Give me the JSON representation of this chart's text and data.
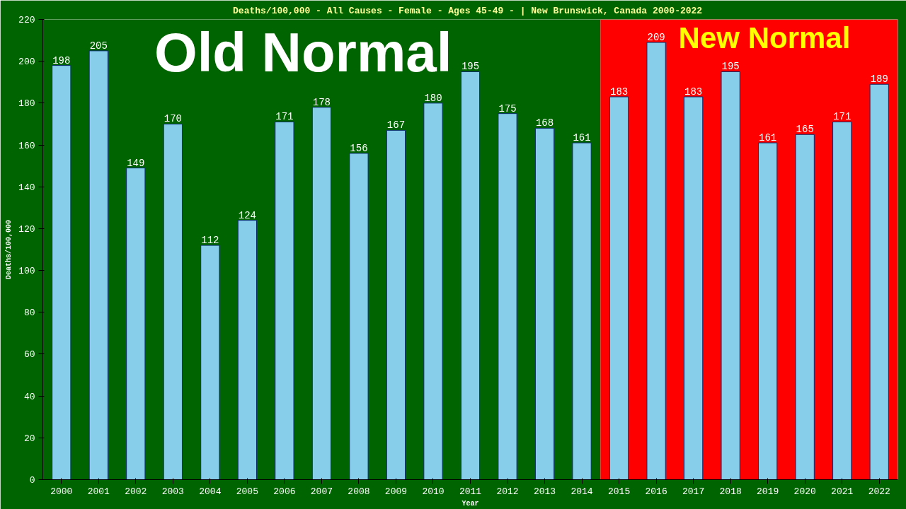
{
  "chart_data": {
    "type": "bar",
    "title": "Deaths/100,000 - All Causes - Female - Ages 45-49 -  | New Brunswick, Canada 2000-2022",
    "xlabel": "Year",
    "ylabel": "Deaths/100,000",
    "categories": [
      "2000",
      "2001",
      "2002",
      "2003",
      "2004",
      "2005",
      "2006",
      "2007",
      "2008",
      "2009",
      "2010",
      "2011",
      "2012",
      "2013",
      "2014",
      "2015",
      "2016",
      "2017",
      "2018",
      "2019",
      "2020",
      "2021",
      "2022"
    ],
    "values": [
      198,
      205,
      149,
      170,
      112,
      124,
      171,
      178,
      156,
      167,
      180,
      195,
      175,
      168,
      161,
      183,
      209,
      183,
      195,
      161,
      165,
      171,
      189
    ],
    "color": "#87ceeb",
    "data_labels": true,
    "ylim": [
      0,
      220
    ],
    "yticks": [
      0,
      20,
      40,
      60,
      80,
      100,
      120,
      140,
      160,
      180,
      200,
      220
    ],
    "grid": false,
    "bands": [
      {
        "axis": "x",
        "from": "2000",
        "to": "2014",
        "label": "Old Normal",
        "color": "#006400"
      },
      {
        "axis": "x",
        "from": "2015",
        "to": "2022",
        "label": "New Normal",
        "color": "#ff0000"
      }
    ]
  }
}
